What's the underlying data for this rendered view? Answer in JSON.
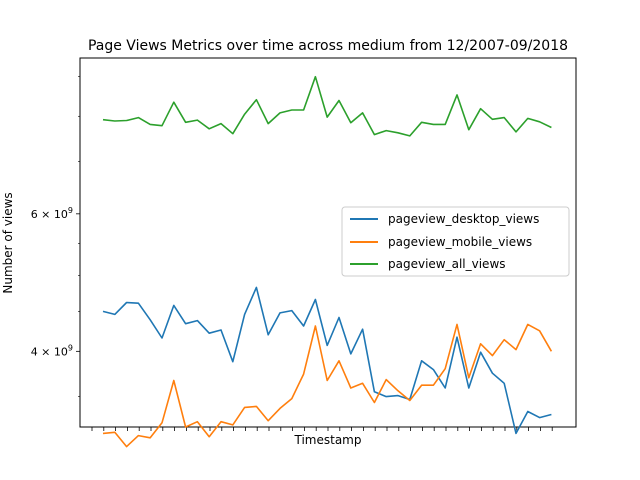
{
  "chart_data": {
    "type": "line",
    "title": "Page Views Metrics over time across medium from 12/2007-09/2018",
    "xlabel": "Timestamp",
    "ylabel": "Number of views",
    "yscale": "log",
    "ylim": [
      3200000000,
      9500000000
    ],
    "yticks": [
      {
        "value": 4000000000,
        "label": "4 × 10^9"
      },
      {
        "value": 6000000000,
        "label": "6 × 10^9"
      }
    ],
    "grid": false,
    "legend_position": "center-right",
    "x": [
      1,
      2,
      3,
      4,
      5,
      6,
      7,
      8,
      9,
      10,
      11,
      12,
      13,
      14,
      15,
      16,
      17,
      18,
      19,
      20,
      21,
      22,
      23,
      24,
      25,
      26,
      27,
      28,
      29,
      30,
      31,
      32,
      33,
      34,
      35,
      36,
      37,
      38,
      39,
      40
    ],
    "series": [
      {
        "name": "pageview_desktop_views",
        "color": "#1f77b4",
        "values": [
          4500000000,
          4460000000,
          4620000000,
          4610000000,
          4390000000,
          4160000000,
          4580000000,
          4340000000,
          4380000000,
          4220000000,
          4260000000,
          3880000000,
          4460000000,
          4830000000,
          4200000000,
          4480000000,
          4510000000,
          4310000000,
          4660000000,
          4070000000,
          4420000000,
          3970000000,
          4270000000,
          3550000000,
          3500000000,
          3510000000,
          3470000000,
          3890000000,
          3790000000,
          3590000000,
          4170000000,
          3590000000,
          3990000000,
          3750000000,
          3640000000,
          3140000000,
          3350000000,
          3290000000,
          3320000000,
          3320000000
        ],
        "visible_points": 39
      },
      {
        "name": "pageview_mobile_views",
        "color": "#ff7f0e",
        "values": [
          3140000000,
          3150000000,
          3020000000,
          3120000000,
          3100000000,
          3240000000,
          3670000000,
          3200000000,
          3250000000,
          3110000000,
          3250000000,
          3220000000,
          3390000000,
          3400000000,
          3260000000,
          3380000000,
          3480000000,
          3740000000,
          4310000000,
          3670000000,
          3890000000,
          3590000000,
          3640000000,
          3440000000,
          3680000000,
          3560000000,
          3460000000,
          3620000000,
          3620000000,
          3800000000,
          4330000000,
          3700000000,
          4090000000,
          3950000000,
          4140000000,
          4020000000,
          4330000000,
          4250000000,
          4000000000,
          4000000000
        ],
        "visible_points": 39
      },
      {
        "name": "pageview_all_views",
        "color": "#2ca02c",
        "values": [
          7920000000,
          7890000000,
          7900000000,
          7970000000,
          7810000000,
          7780000000,
          8340000000,
          7860000000,
          7910000000,
          7710000000,
          7830000000,
          7600000000,
          8050000000,
          8400000000,
          7830000000,
          8080000000,
          8150000000,
          8150000000,
          8990000000,
          7980000000,
          8380000000,
          7850000000,
          8080000000,
          7580000000,
          7670000000,
          7620000000,
          7550000000,
          7860000000,
          7810000000,
          7810000000,
          8520000000,
          7690000000,
          8180000000,
          7930000000,
          7970000000,
          7640000000,
          7950000000,
          7870000000,
          7740000000,
          7740000000
        ],
        "visible_points": 39
      }
    ]
  }
}
